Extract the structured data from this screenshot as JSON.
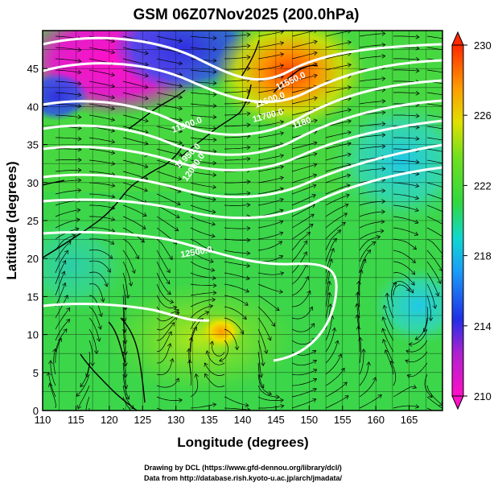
{
  "title": "GSM 06Z07Nov2025 (200.0hPa)",
  "xlabel": "Longitude (degrees)",
  "ylabel": "Latitude  (degrees)",
  "xticks": [
    "110",
    "115",
    "120",
    "125",
    "130",
    "135",
    "140",
    "145",
    "150",
    "155",
    "160",
    "165"
  ],
  "yticks": [
    "0",
    "5",
    "10",
    "15",
    "20",
    "25",
    "30",
    "35",
    "40",
    "45"
  ],
  "xlim": [
    110,
    170
  ],
  "ylim": [
    0,
    50
  ],
  "colorbar": {
    "ticks": [
      "210",
      "214",
      "218",
      "222",
      "226",
      "230"
    ],
    "range": [
      210,
      230
    ],
    "colors": [
      "#ff10c8",
      "#c030d0",
      "#2030e0",
      "#1890f8",
      "#10d8d8",
      "#40e070",
      "#30d830",
      "#80e020",
      "#f0e000",
      "#ff9000",
      "#ff3000"
    ]
  },
  "contour_labels": [
    "11900.0",
    "11950.0",
    "12000.0",
    "12500.0",
    "11550.0",
    "11600.0",
    "11700.0",
    "1180"
  ],
  "credit_line1": "Drawing by DCL (https://www.gfd-dennou.org/library/dcl/)",
  "credit_line2": "Data from http://database.rish.kyoto-u.ac.jp/arch/jmadata/"
}
